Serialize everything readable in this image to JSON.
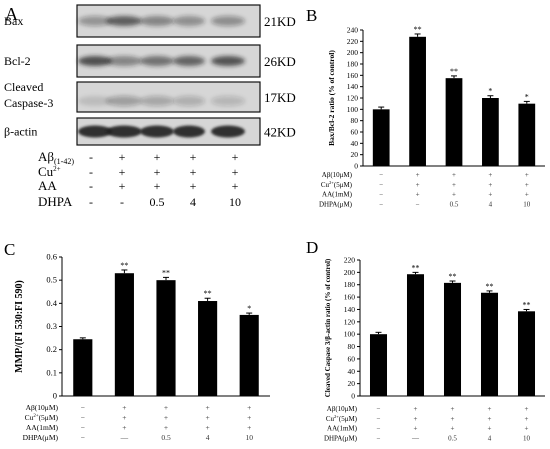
{
  "panels": {
    "A": {
      "letter": "A",
      "blots": [
        {
          "label": "Bax",
          "size": "21KD"
        },
        {
          "label": "Bcl-2",
          "size": "26KD"
        },
        {
          "label": "Cleaved\nCaspase-3",
          "size": "17KD"
        },
        {
          "label": "β-actin",
          "size": "42KD"
        }
      ],
      "treatments": [
        {
          "label": "Aβ(1-42)",
          "values": [
            "-",
            "+",
            "+",
            "+",
            "+"
          ]
        },
        {
          "label": "Cu2+",
          "values": [
            "-",
            "+",
            "+",
            "+",
            "+"
          ]
        },
        {
          "label": "AA",
          "values": [
            "-",
            "+",
            "+",
            "+",
            "+"
          ]
        },
        {
          "label": "DHPA",
          "values": [
            "-",
            "-",
            "0.5",
            "4",
            "10"
          ]
        }
      ]
    },
    "B": {
      "letter": "B"
    },
    "C": {
      "letter": "C"
    },
    "D": {
      "letter": "D"
    }
  },
  "chart_data": [
    {
      "panel": "B",
      "type": "bar",
      "ylabel": "Bax/Bcl-2 ratio (% of control)",
      "ylim": [
        0,
        240
      ],
      "yticks": [
        0,
        20,
        40,
        60,
        80,
        100,
        120,
        140,
        160,
        180,
        200,
        220,
        240
      ],
      "values": [
        100,
        228,
        155,
        120,
        110
      ],
      "errors": [
        4,
        5,
        4,
        4,
        4
      ],
      "significance": [
        "",
        "**",
        "**",
        "*",
        "*"
      ],
      "treatments": [
        {
          "label": "Aβ(10μM)",
          "values": [
            "−",
            "+",
            "+",
            "+",
            "+"
          ]
        },
        {
          "label": "Cu2+(5μM)",
          "values": [
            "−",
            "+",
            "+",
            "+",
            "+"
          ]
        },
        {
          "label": "AA(1mM)",
          "values": [
            "−",
            "+",
            "+",
            "+",
            "+"
          ]
        },
        {
          "label": "DHPA(μM)",
          "values": [
            "−",
            "−",
            "0.5",
            "4",
            "10"
          ]
        }
      ]
    },
    {
      "panel": "C",
      "type": "bar",
      "ylabel": "MMP/(FI 530:FI 590)",
      "ylim": [
        0,
        0.6
      ],
      "yticks": [
        0,
        0.1,
        0.2,
        0.3,
        0.4,
        0.5,
        0.6
      ],
      "values": [
        0.245,
        0.53,
        0.5,
        0.41,
        0.35
      ],
      "errors": [
        0.006,
        0.014,
        0.012,
        0.012,
        0.008
      ],
      "significance": [
        "",
        "**",
        "**",
        "**",
        "*"
      ],
      "treatments": [
        {
          "label": "Aβ(10μM)",
          "values": [
            "−",
            "+",
            "+",
            "+",
            "+"
          ]
        },
        {
          "label": "Cu2+(5μM)",
          "values": [
            "−",
            "+",
            "+",
            "+",
            "+"
          ]
        },
        {
          "label": "AA(1mM)",
          "values": [
            "−",
            "+",
            "+",
            "+",
            "+"
          ]
        },
        {
          "label": "DHPA(μM)",
          "values": [
            "−",
            "—",
            "0.5",
            "4",
            "10"
          ]
        }
      ]
    },
    {
      "panel": "D",
      "type": "bar",
      "ylabel": "Cleaved Caspase 3/β-actin ratio (% of control)",
      "ylim": [
        0,
        220
      ],
      "yticks": [
        0,
        20,
        40,
        60,
        80,
        100,
        120,
        140,
        160,
        180,
        200,
        220
      ],
      "values": [
        100,
        197,
        183,
        167,
        137
      ],
      "errors": [
        3,
        3,
        3,
        3,
        3
      ],
      "significance": [
        "",
        "**",
        "**",
        "**",
        "**"
      ],
      "treatments": [
        {
          "label": "Aβ(10μM)",
          "values": [
            "−",
            "+",
            "+",
            "+",
            "+"
          ]
        },
        {
          "label": "Cu2+(5μM)",
          "values": [
            "−",
            "+",
            "+",
            "+",
            "+"
          ]
        },
        {
          "label": "AA(1mM)",
          "values": [
            "−",
            "+",
            "+",
            "+",
            "+"
          ]
        },
        {
          "label": "DHPA(μM)",
          "values": [
            "−",
            "—",
            "0.5",
            "4",
            "10"
          ]
        }
      ]
    }
  ]
}
